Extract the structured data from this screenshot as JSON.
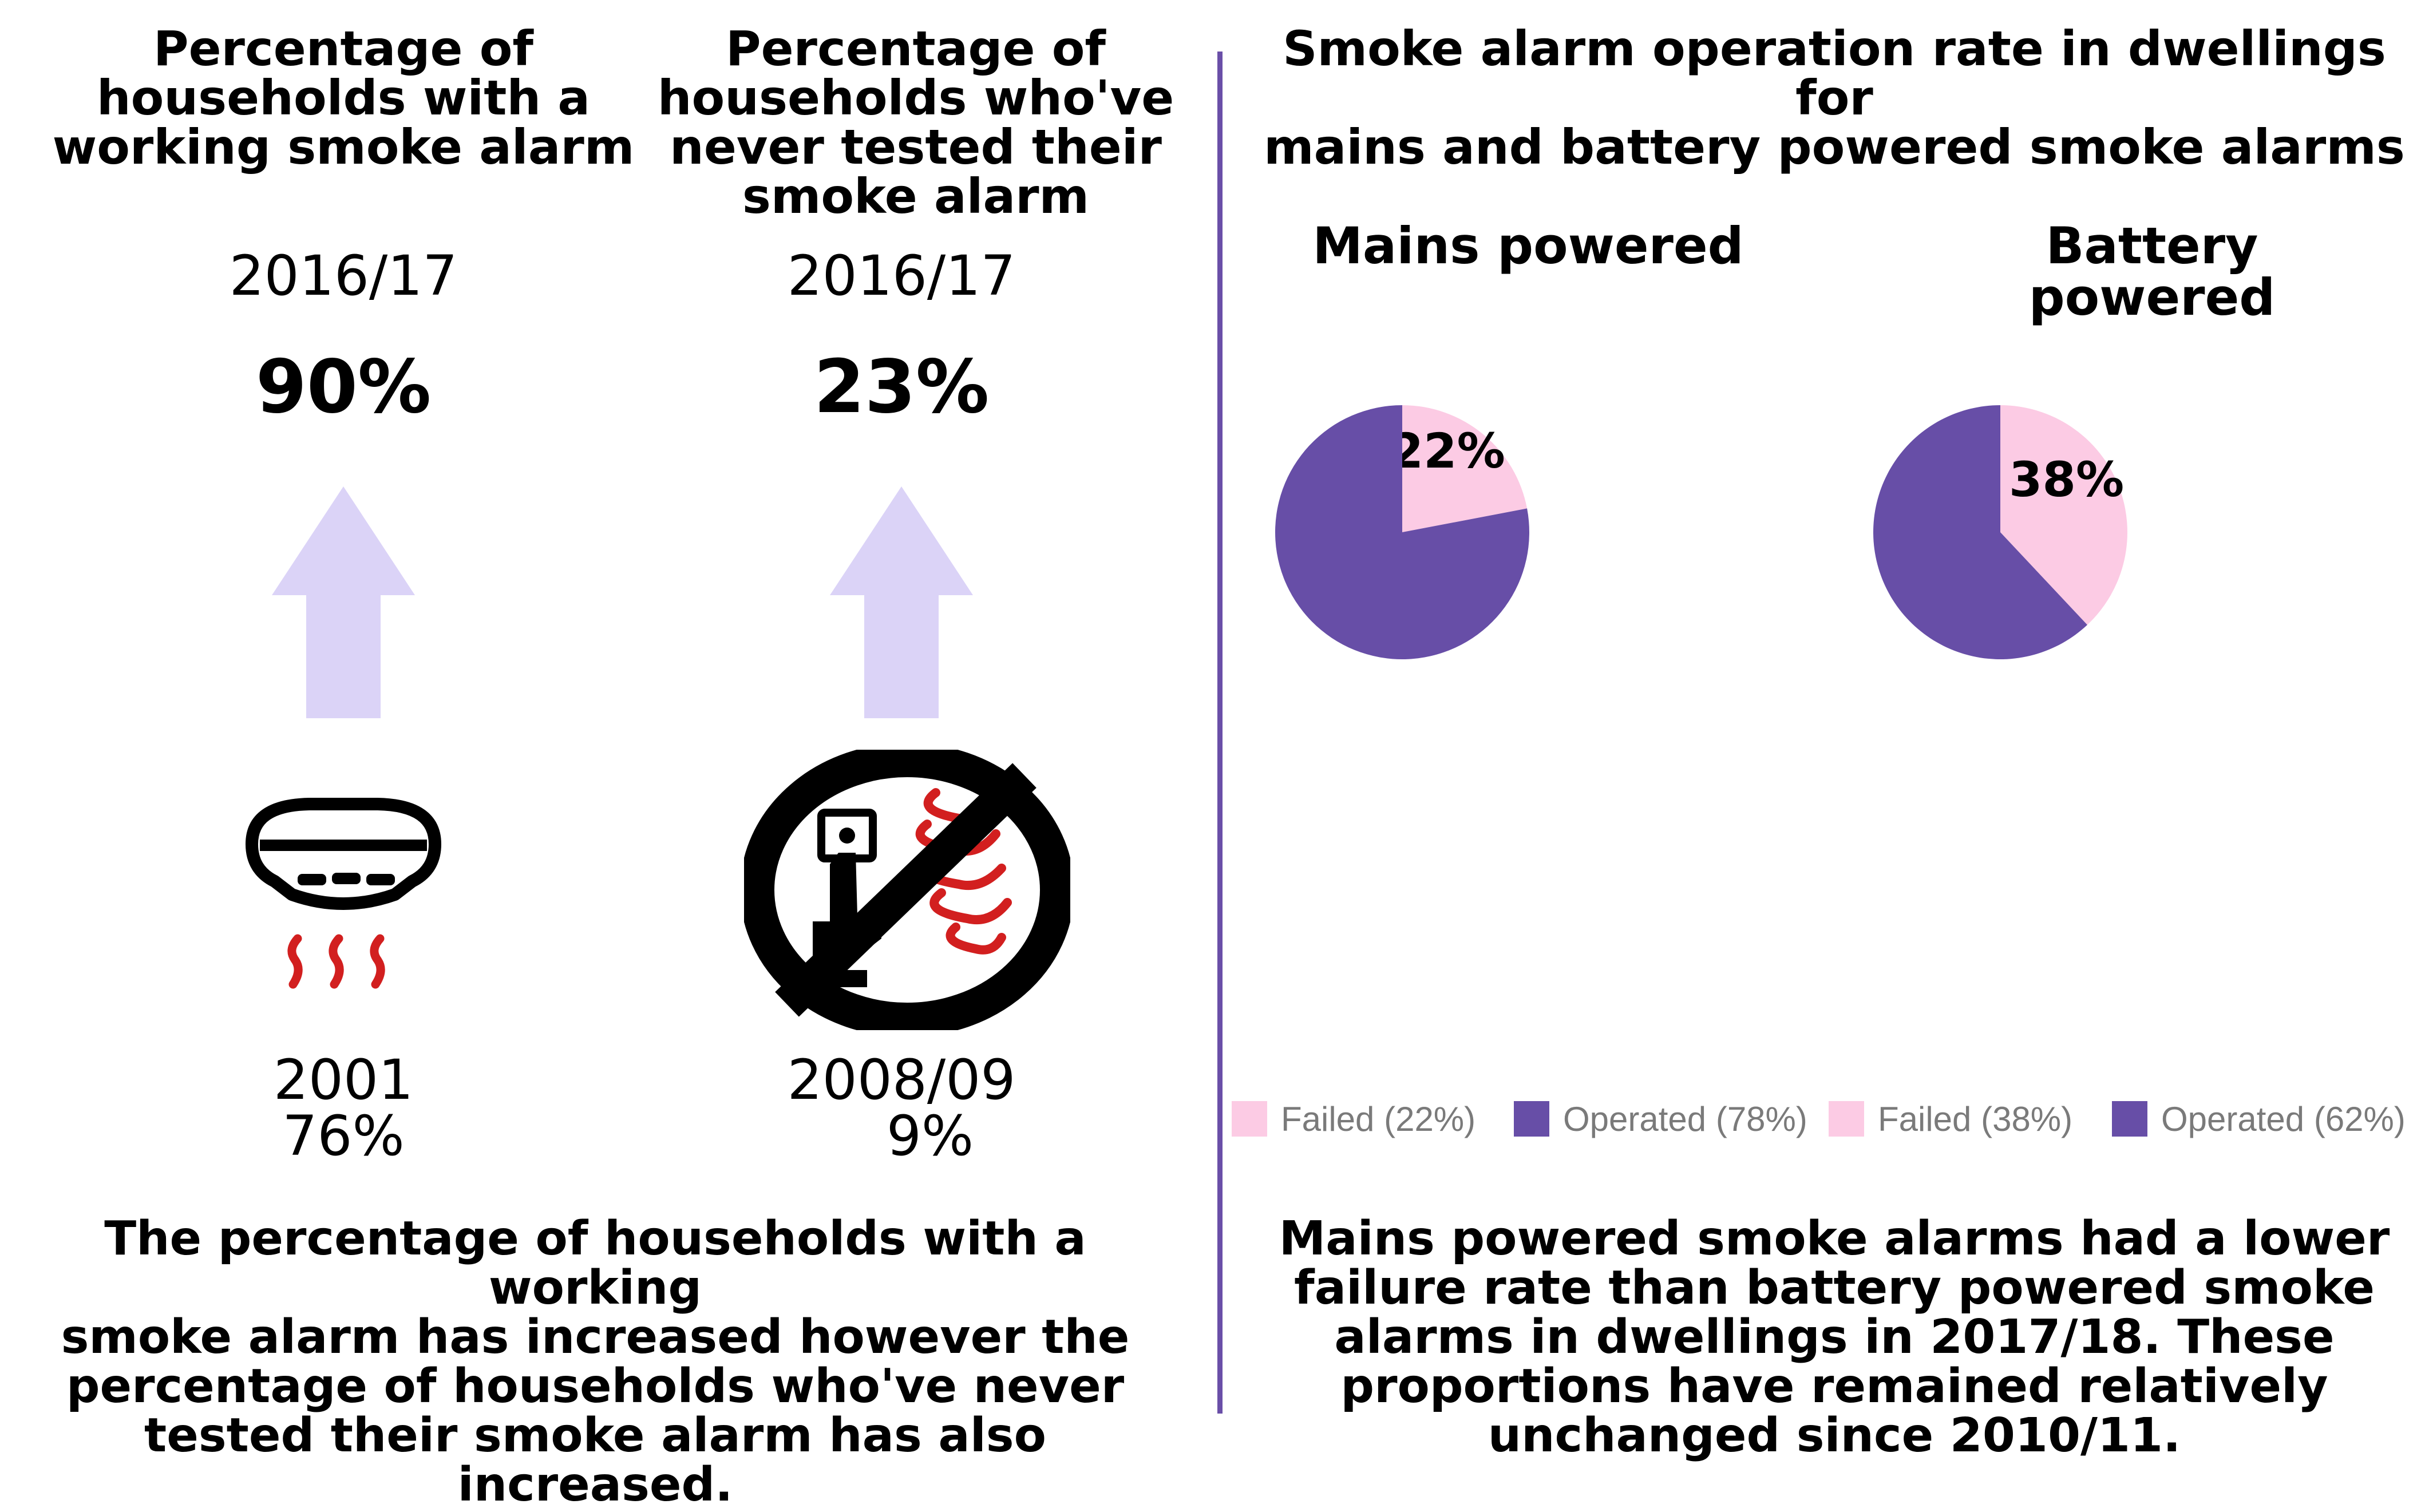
{
  "colors": {
    "arrow": "#dbd3f7",
    "divider": "#6a4fa8",
    "failed": "#fccbe4",
    "operated": "#674ea7",
    "flame_red": "#d21f1f",
    "icon_black": "#000000"
  },
  "left_panel": {
    "working": {
      "heading": [
        "Percentage of",
        "households with a",
        "working smoke alarm"
      ],
      "year": "2016/17",
      "value": "90%",
      "baseline_year": "2001",
      "baseline_value": "76%",
      "arrow_direction": "up",
      "icon": "smoke-detector-icon"
    },
    "never_tested": {
      "heading": [
        "Percentage of",
        "households who've",
        "never tested their",
        "smoke alarm"
      ],
      "year": "2016/17",
      "value": "23%",
      "baseline_year": "2008/09",
      "baseline_value": "9%",
      "arrow_direction": "up",
      "icon": "no-testing-icon"
    },
    "summary": [
      "The percentage of households with a working",
      "smoke alarm has increased however the",
      "percentage of households who've never",
      "tested their smoke alarm has also increased."
    ]
  },
  "right_panel": {
    "title": [
      "Smoke alarm operation rate in dwellings for",
      "mains and battery powered smoke alarms"
    ],
    "summary": [
      "Mains powered smoke alarms had a lower",
      "failure rate than battery powered smoke",
      "alarms in dwellings in 2017/18. These",
      "proportions have remained relatively",
      "unchanged since 2010/11."
    ]
  },
  "chart_data": [
    {
      "type": "pie",
      "title": "Mains powered",
      "slices": [
        {
          "label": "Failed",
          "value": 22,
          "color": "#fccbe4",
          "data_label": "22%"
        },
        {
          "label": "Operated",
          "value": 78,
          "color": "#674ea7",
          "data_label": ""
        }
      ],
      "legend": [
        "Failed (22%)",
        "Operated (78%)"
      ],
      "legend_placement": "bottom"
    },
    {
      "type": "pie",
      "title": "Battery powered",
      "slices": [
        {
          "label": "Failed",
          "value": 38,
          "color": "#fccbe4",
          "data_label": "38%"
        },
        {
          "label": "Operated",
          "value": 62,
          "color": "#674ea7",
          "data_label": ""
        }
      ],
      "legend": [
        "Failed (38%)",
        "Operated (62%)"
      ],
      "legend_placement": "bottom"
    }
  ]
}
